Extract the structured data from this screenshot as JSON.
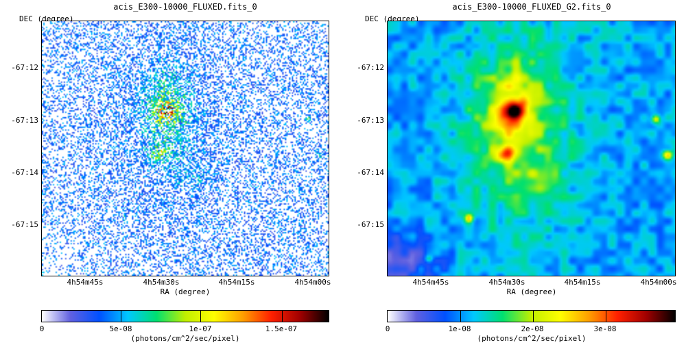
{
  "panels": [
    {
      "title": "acis_E300-10000_FLUXED.fits_0",
      "dec_label": "DEC (degree)",
      "ra_label": "RA (degree)",
      "dec_ticks": [
        "-67:12",
        "-67:13",
        "-67:14",
        "-67:15"
      ],
      "ra_ticks": [
        "4h54m45s",
        "4h54m30s",
        "4h54m15s",
        "4h54m00s"
      ],
      "colorbar_ticks": [
        "0",
        "5e-08",
        "1e-07",
        "1.5e-07"
      ],
      "colorbar_unit": "(photons/cm^2/sec/pixel)",
      "style": "noisy"
    },
    {
      "title": "acis_E300-10000_FLUXED_G2.fits_0",
      "dec_label": "DEC (degree)",
      "ra_label": "RA (degree)",
      "dec_ticks": [
        "-67:12",
        "-67:13",
        "-67:14",
        "-67:15"
      ],
      "ra_ticks": [
        "4h54m45s",
        "4h54m30s",
        "4h54m15s",
        "4h54m00s"
      ],
      "colorbar_ticks": [
        "0",
        "1e-08",
        "2e-08",
        "3e-08"
      ],
      "colorbar_unit": "(photons/cm^2/sec/pixel)",
      "style": "smooth"
    }
  ],
  "colormap": [
    "#ffffff",
    "#6060e0",
    "#0050ff",
    "#00c8ff",
    "#00e070",
    "#c0f000",
    "#ffff00",
    "#ffa000",
    "#ff2000",
    "#a00000",
    "#000000"
  ]
}
